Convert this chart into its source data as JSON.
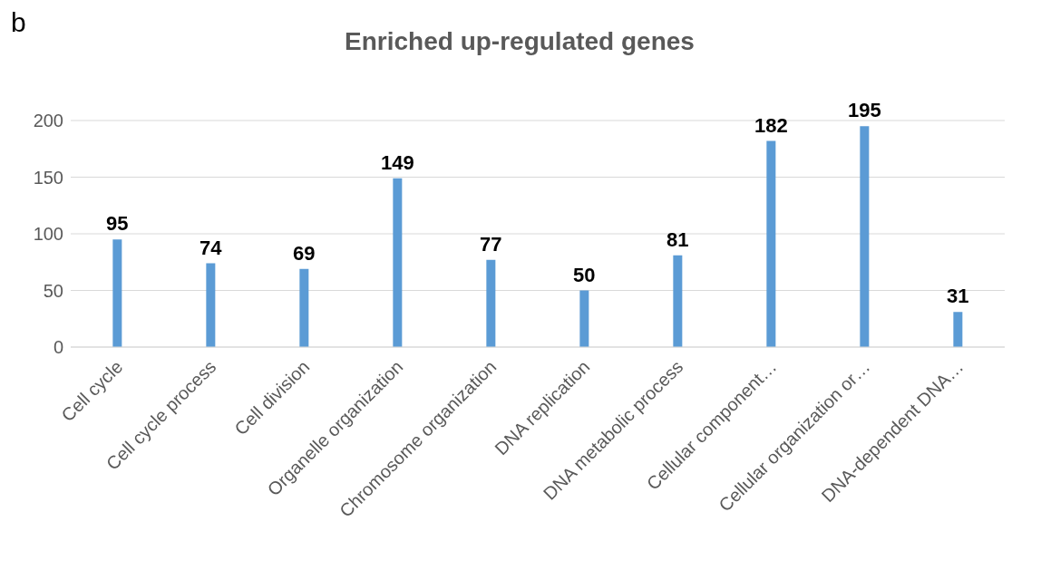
{
  "chart_data": {
    "type": "bar",
    "title": "Enriched up-regulated genes",
    "annotations": [
      "b"
    ],
    "categories": [
      "Cell cycle",
      "Cell cycle process",
      "Cell division",
      "Organelle organization",
      "Chromosome organization",
      "DNA replication",
      "DNA metabolic process",
      "Cellular component…",
      "Cellular organization or…",
      "DNA-dependent DNA…"
    ],
    "values": [
      95,
      74,
      69,
      149,
      77,
      50,
      81,
      182,
      195,
      31
    ],
    "color": "#5b9bd5",
    "ylim": [
      0,
      200
    ],
    "yticks": [
      0,
      50,
      100,
      150,
      200
    ],
    "grid": "y",
    "data_labels": true
  }
}
